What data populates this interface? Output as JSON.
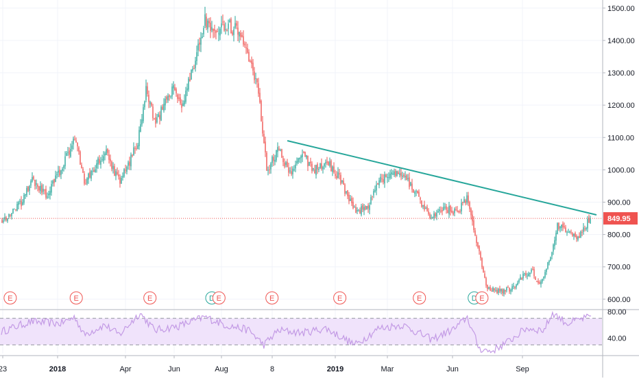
{
  "chart_data": {
    "type": "candlestick",
    "x_ticks": [
      "23",
      "2018",
      "Apr",
      "Jun",
      "Aug",
      "8",
      "2019",
      "Mar",
      "Jun",
      "Sep"
    ],
    "price_ticks": [
      600,
      700,
      800,
      900,
      1000,
      1100,
      1200,
      1300,
      1400,
      1500
    ],
    "price_tick_labels": [
      "600.00",
      "700.00",
      "800.00",
      "900.00",
      "1000.00",
      "1100.00",
      "1200.00",
      "1300.00",
      "1400.00",
      "1500.00"
    ],
    "ylim": [
      570,
      1525
    ],
    "grid": true,
    "last_price": 849.95,
    "last_price_label": "849.95",
    "price_path": [
      {
        "t": 0,
        "p": 840
      },
      {
        "t": 0.035,
        "p": 900
      },
      {
        "t": 0.05,
        "p": 970
      },
      {
        "t": 0.075,
        "p": 920
      },
      {
        "t": 0.1,
        "p": 1000
      },
      {
        "t": 0.125,
        "p": 1100
      },
      {
        "t": 0.14,
        "p": 960
      },
      {
        "t": 0.155,
        "p": 1000
      },
      {
        "t": 0.175,
        "p": 1060
      },
      {
        "t": 0.2,
        "p": 960
      },
      {
        "t": 0.23,
        "p": 1080
      },
      {
        "t": 0.245,
        "p": 1250
      },
      {
        "t": 0.26,
        "p": 1140
      },
      {
        "t": 0.29,
        "p": 1250
      },
      {
        "t": 0.305,
        "p": 1200
      },
      {
        "t": 0.33,
        "p": 1350
      },
      {
        "t": 0.345,
        "p": 1460
      },
      {
        "t": 0.36,
        "p": 1410
      },
      {
        "t": 0.38,
        "p": 1450
      },
      {
        "t": 0.4,
        "p": 1430
      },
      {
        "t": 0.415,
        "p": 1360
      },
      {
        "t": 0.435,
        "p": 1250
      },
      {
        "t": 0.45,
        "p": 1000
      },
      {
        "t": 0.47,
        "p": 1060
      },
      {
        "t": 0.49,
        "p": 990
      },
      {
        "t": 0.51,
        "p": 1050
      },
      {
        "t": 0.53,
        "p": 1000
      },
      {
        "t": 0.555,
        "p": 1020
      },
      {
        "t": 0.575,
        "p": 970
      },
      {
        "t": 0.6,
        "p": 870
      },
      {
        "t": 0.62,
        "p": 880
      },
      {
        "t": 0.64,
        "p": 960
      },
      {
        "t": 0.66,
        "p": 990
      },
      {
        "t": 0.685,
        "p": 980
      },
      {
        "t": 0.705,
        "p": 920
      },
      {
        "t": 0.73,
        "p": 850
      },
      {
        "t": 0.75,
        "p": 880
      },
      {
        "t": 0.775,
        "p": 870
      },
      {
        "t": 0.79,
        "p": 910
      },
      {
        "t": 0.81,
        "p": 750
      },
      {
        "t": 0.825,
        "p": 630
      },
      {
        "t": 0.845,
        "p": 625
      },
      {
        "t": 0.865,
        "p": 630
      },
      {
        "t": 0.885,
        "p": 670
      },
      {
        "t": 0.9,
        "p": 690
      },
      {
        "t": 0.915,
        "p": 640
      },
      {
        "t": 0.93,
        "p": 720
      },
      {
        "t": 0.945,
        "p": 830
      },
      {
        "t": 0.965,
        "p": 800
      },
      {
        "t": 0.98,
        "p": 795
      },
      {
        "t": 1,
        "p": 850
      }
    ],
    "trendline": {
      "start": {
        "t": 0.485,
        "p": 1090
      },
      "end": {
        "t": 1,
        "p": 865
      }
    },
    "event_markers": [
      {
        "t": 0.008,
        "label": "E"
      },
      {
        "t": 0.12,
        "label": "E"
      },
      {
        "t": 0.245,
        "label": "E"
      },
      {
        "t": 0.35,
        "label": "D"
      },
      {
        "t": 0.362,
        "label": "E"
      },
      {
        "t": 0.452,
        "label": "E"
      },
      {
        "t": 0.567,
        "label": "E"
      },
      {
        "t": 0.702,
        "label": "E"
      },
      {
        "t": 0.795,
        "label": "D"
      },
      {
        "t": 0.808,
        "label": "E"
      }
    ],
    "rsi": {
      "ticks": [
        40,
        80
      ],
      "tick_labels": [
        "40.00",
        "80.00"
      ],
      "band": [
        30,
        70
      ],
      "ylim": [
        17,
        82
      ],
      "path": [
        {
          "t": 0,
          "v": 50
        },
        {
          "t": 0.05,
          "v": 65
        },
        {
          "t": 0.1,
          "v": 62
        },
        {
          "t": 0.125,
          "v": 72
        },
        {
          "t": 0.14,
          "v": 45
        },
        {
          "t": 0.175,
          "v": 60
        },
        {
          "t": 0.2,
          "v": 45
        },
        {
          "t": 0.235,
          "v": 78
        },
        {
          "t": 0.26,
          "v": 52
        },
        {
          "t": 0.3,
          "v": 58
        },
        {
          "t": 0.345,
          "v": 72
        },
        {
          "t": 0.38,
          "v": 60
        },
        {
          "t": 0.42,
          "v": 52
        },
        {
          "t": 0.445,
          "v": 30
        },
        {
          "t": 0.47,
          "v": 52
        },
        {
          "t": 0.51,
          "v": 48
        },
        {
          "t": 0.55,
          "v": 55
        },
        {
          "t": 0.6,
          "v": 30
        },
        {
          "t": 0.64,
          "v": 55
        },
        {
          "t": 0.68,
          "v": 60
        },
        {
          "t": 0.73,
          "v": 38
        },
        {
          "t": 0.77,
          "v": 55
        },
        {
          "t": 0.79,
          "v": 72
        },
        {
          "t": 0.81,
          "v": 25
        },
        {
          "t": 0.83,
          "v": 20
        },
        {
          "t": 0.86,
          "v": 35
        },
        {
          "t": 0.89,
          "v": 55
        },
        {
          "t": 0.92,
          "v": 52
        },
        {
          "t": 0.935,
          "v": 78
        },
        {
          "t": 0.96,
          "v": 62
        },
        {
          "t": 0.98,
          "v": 68
        },
        {
          "t": 1,
          "v": 72
        }
      ]
    },
    "colors": {
      "up": "#26a69a",
      "down": "#ef5350",
      "trendline": "#26a69a",
      "last_price": "#ef5350",
      "rsi_line": "#c39ae5",
      "rsi_band": "#f0e3fb",
      "event": "#ef5350",
      "dividend": "#26a69a",
      "grid": "#f0f3fa",
      "axis_text": "#131722"
    }
  }
}
